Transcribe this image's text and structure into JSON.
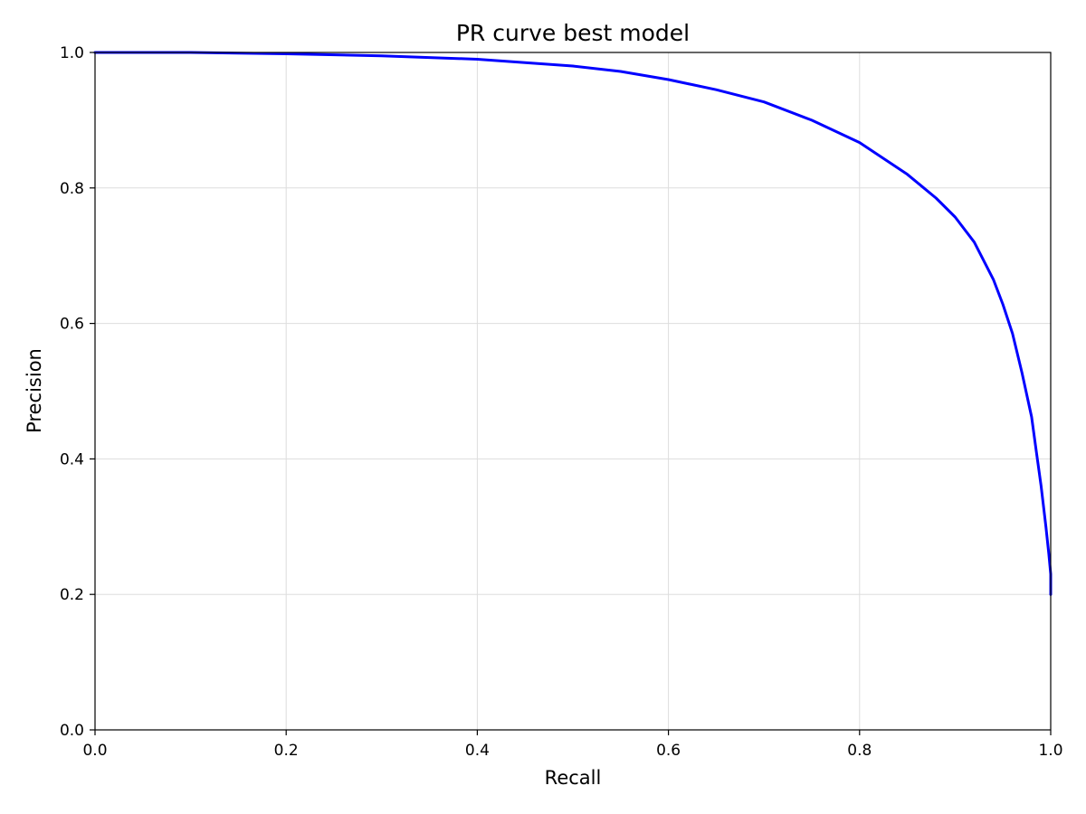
{
  "chart_data": {
    "type": "line",
    "title": "PR curve best model",
    "xlabel": "Recall",
    "ylabel": "Precision",
    "xlim": [
      0.0,
      1.0
    ],
    "ylim": [
      0.0,
      1.0
    ],
    "grid": true,
    "x_ticks": [
      "0.0",
      "0.2",
      "0.4",
      "0.6",
      "0.8",
      "1.0"
    ],
    "y_ticks": [
      "0.0",
      "0.2",
      "0.4",
      "0.6",
      "0.8",
      "1.0"
    ],
    "series": [
      {
        "color": "#0000ff",
        "x": [
          0.0,
          0.1,
          0.2,
          0.3,
          0.4,
          0.5,
          0.55,
          0.6,
          0.65,
          0.7,
          0.75,
          0.8,
          0.85,
          0.88,
          0.9,
          0.92,
          0.94,
          0.95,
          0.96,
          0.97,
          0.98,
          0.985,
          0.99,
          0.995,
          0.998,
          1.0,
          1.0
        ],
        "y": [
          1.0,
          1.0,
          0.998,
          0.995,
          0.99,
          0.98,
          0.972,
          0.96,
          0.945,
          0.927,
          0.9,
          0.867,
          0.82,
          0.785,
          0.757,
          0.72,
          0.665,
          0.628,
          0.585,
          0.527,
          0.462,
          0.41,
          0.36,
          0.3,
          0.26,
          0.23,
          0.2
        ]
      }
    ]
  }
}
